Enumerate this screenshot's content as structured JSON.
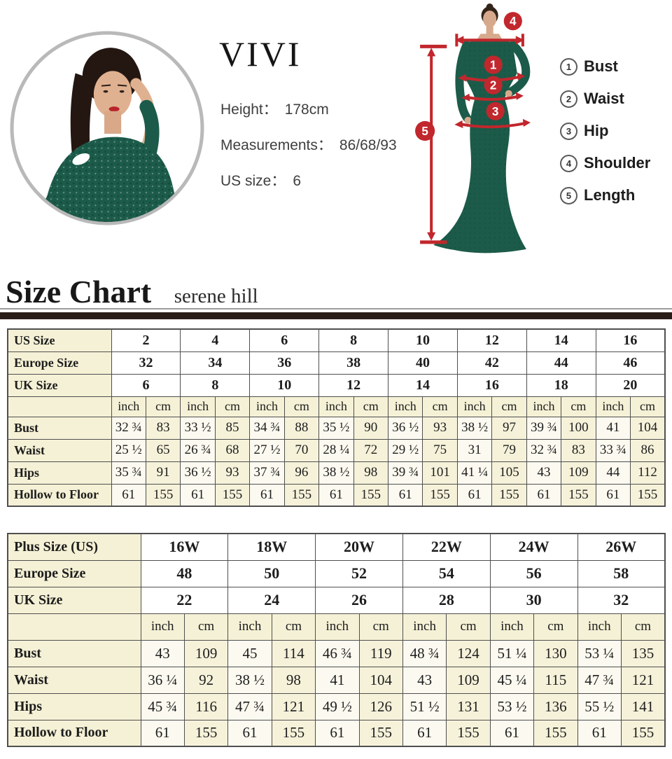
{
  "model": {
    "brand": "VIVI",
    "stats": [
      {
        "label": "Height：",
        "value": "178cm"
      },
      {
        "label": "Measurements：",
        "value": "86/68/93"
      },
      {
        "label": "US size：",
        "value": "6"
      }
    ]
  },
  "diagram": {
    "markers": [
      "1",
      "2",
      "3",
      "4",
      "5"
    ]
  },
  "legend": {
    "items": [
      {
        "num": "1",
        "label": "Bust"
      },
      {
        "num": "2",
        "label": "Waist"
      },
      {
        "num": "3",
        "label": "Hip"
      },
      {
        "num": "4",
        "label": "Shoulder"
      },
      {
        "num": "5",
        "label": "Length"
      }
    ]
  },
  "heading": {
    "title": "Size Chart",
    "subtitle": "serene hill"
  },
  "colors": {
    "accent_red": "#c1272d",
    "dress_green": "#1c5b49",
    "table_cream": "#f5f1d6",
    "divider_dark": "#281e17"
  },
  "chart_data": [
    {
      "type": "table",
      "units": [
        "inch",
        "cm"
      ],
      "size_rows": [
        {
          "label": "US Size",
          "values": [
            "2",
            "4",
            "6",
            "8",
            "10",
            "12",
            "14",
            "16"
          ]
        },
        {
          "label": "Europe Size",
          "values": [
            "32",
            "34",
            "36",
            "38",
            "40",
            "42",
            "44",
            "46"
          ]
        },
        {
          "label": "UK Size",
          "values": [
            "6",
            "8",
            "10",
            "12",
            "14",
            "16",
            "18",
            "20"
          ]
        }
      ],
      "measure_rows": [
        {
          "label": "Bust",
          "pairs": [
            [
              "32 ¾",
              "83"
            ],
            [
              "33 ½",
              "85"
            ],
            [
              "34 ¾",
              "88"
            ],
            [
              "35 ½",
              "90"
            ],
            [
              "36 ½",
              "93"
            ],
            [
              "38 ½",
              "97"
            ],
            [
              "39 ¾",
              "100"
            ],
            [
              "41",
              "104"
            ]
          ]
        },
        {
          "label": "Waist",
          "pairs": [
            [
              "25 ½",
              "65"
            ],
            [
              "26 ¾",
              "68"
            ],
            [
              "27 ½",
              "70"
            ],
            [
              "28 ¼",
              "72"
            ],
            [
              "29 ½",
              "75"
            ],
            [
              "31",
              "79"
            ],
            [
              "32 ¾",
              "83"
            ],
            [
              "33 ¾",
              "86"
            ]
          ]
        },
        {
          "label": "Hips",
          "pairs": [
            [
              "35 ¾",
              "91"
            ],
            [
              "36 ½",
              "93"
            ],
            [
              "37 ¾",
              "96"
            ],
            [
              "38 ½",
              "98"
            ],
            [
              "39 ¾",
              "101"
            ],
            [
              "41 ¼",
              "105"
            ],
            [
              "43",
              "109"
            ],
            [
              "44",
              "112"
            ]
          ]
        },
        {
          "label": "Hollow to Floor",
          "pairs": [
            [
              "61",
              "155"
            ],
            [
              "61",
              "155"
            ],
            [
              "61",
              "155"
            ],
            [
              "61",
              "155"
            ],
            [
              "61",
              "155"
            ],
            [
              "61",
              "155"
            ],
            [
              "61",
              "155"
            ],
            [
              "61",
              "155"
            ]
          ]
        }
      ]
    },
    {
      "type": "table",
      "units": [
        "inch",
        "cm"
      ],
      "size_rows": [
        {
          "label": "Plus Size (US)",
          "values": [
            "16W",
            "18W",
            "20W",
            "22W",
            "24W",
            "26W"
          ]
        },
        {
          "label": "Europe Size",
          "values": [
            "48",
            "50",
            "52",
            "54",
            "56",
            "58"
          ]
        },
        {
          "label": "UK Size",
          "values": [
            "22",
            "24",
            "26",
            "28",
            "30",
            "32"
          ]
        }
      ],
      "measure_rows": [
        {
          "label": "Bust",
          "pairs": [
            [
              "43",
              "109"
            ],
            [
              "45",
              "114"
            ],
            [
              "46 ¾",
              "119"
            ],
            [
              "48 ¾",
              "124"
            ],
            [
              "51 ¼",
              "130"
            ],
            [
              "53 ¼",
              "135"
            ]
          ]
        },
        {
          "label": "Waist",
          "pairs": [
            [
              "36 ¼",
              "92"
            ],
            [
              "38 ½",
              "98"
            ],
            [
              "41",
              "104"
            ],
            [
              "43",
              "109"
            ],
            [
              "45 ¼",
              "115"
            ],
            [
              "47 ¾",
              "121"
            ]
          ]
        },
        {
          "label": "Hips",
          "pairs": [
            [
              "45 ¾",
              "116"
            ],
            [
              "47 ¾",
              "121"
            ],
            [
              "49 ½",
              "126"
            ],
            [
              "51 ½",
              "131"
            ],
            [
              "53 ½",
              "136"
            ],
            [
              "55 ½",
              "141"
            ]
          ]
        },
        {
          "label": "Hollow to Floor",
          "pairs": [
            [
              "61",
              "155"
            ],
            [
              "61",
              "155"
            ],
            [
              "61",
              "155"
            ],
            [
              "61",
              "155"
            ],
            [
              "61",
              "155"
            ],
            [
              "61",
              "155"
            ]
          ]
        }
      ]
    }
  ]
}
